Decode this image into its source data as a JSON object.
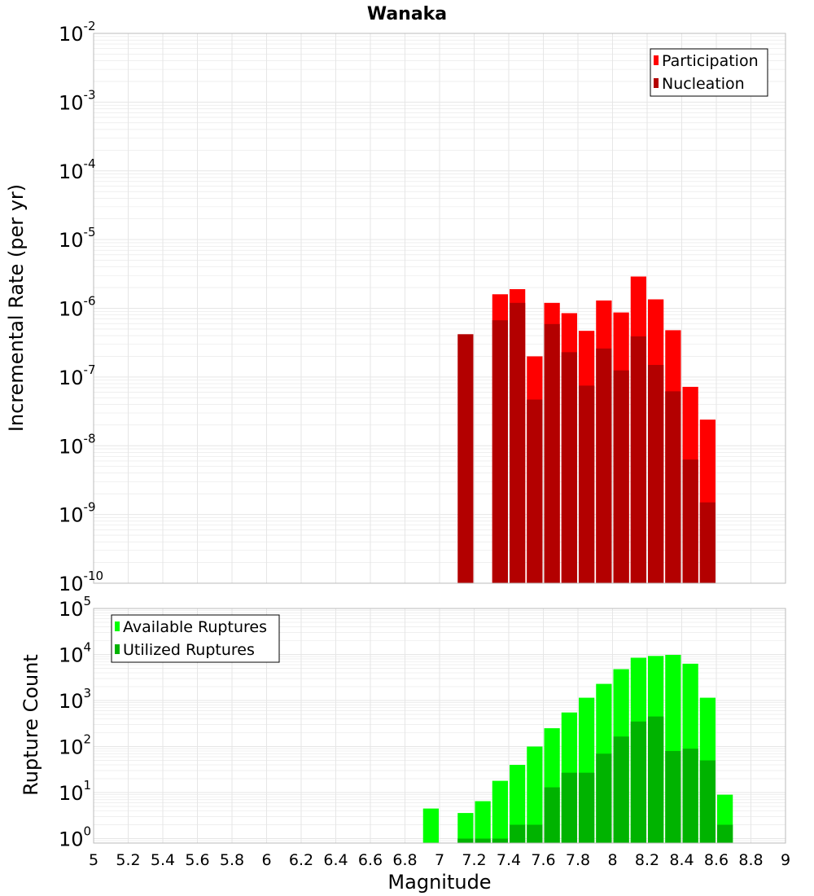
{
  "title": "Wanaka",
  "colors": {
    "participation": "#ff0000",
    "nucleation": "#b30000",
    "available": "#00ff00",
    "utilized": "#00b300",
    "grid": "#e6e6e6",
    "plot_border": "#bbbbbb"
  },
  "xlabel": "Magnitude",
  "x_ticks": [
    "5",
    "5.2",
    "5.4",
    "5.6",
    "5.8",
    "6",
    "6.2",
    "6.4",
    "6.6",
    "6.8",
    "7",
    "7.2",
    "7.4",
    "7.6",
    "7.8",
    "8",
    "8.2",
    "8.4",
    "8.6",
    "8.8",
    "9"
  ],
  "chart_data": [
    {
      "type": "bar",
      "scale": "log",
      "ylabel": "Incremental Rate (per yr)",
      "xlim": [
        5,
        9
      ],
      "ylim": [
        1e-10,
        0.01
      ],
      "y_ticks": [
        {
          "base": "10",
          "exp": "-2",
          "value": 0.01
        },
        {
          "base": "10",
          "exp": "-3",
          "value": 0.001
        },
        {
          "base": "10",
          "exp": "-4",
          "value": 0.0001
        },
        {
          "base": "10",
          "exp": "-5",
          "value": 1e-05
        },
        {
          "base": "10",
          "exp": "-6",
          "value": 1e-06
        },
        {
          "base": "10",
          "exp": "-7",
          "value": 1e-07
        },
        {
          "base": "10",
          "exp": "-8",
          "value": 1e-08
        },
        {
          "base": "10",
          "exp": "-9",
          "value": 1e-09
        },
        {
          "base": "10",
          "exp": "-10",
          "value": 1e-10
        }
      ],
      "legend_position": "top-right",
      "bar_width": 0.1,
      "series": [
        {
          "name": "Participation",
          "color_key": "participation",
          "x": [
            7.35,
            7.45,
            7.55,
            7.65,
            7.75,
            7.85,
            7.95,
            8.05,
            8.15,
            8.25,
            8.35,
            8.45,
            8.55
          ],
          "values": [
            1.6e-06,
            1.9e-06,
            2e-07,
            1.2e-06,
            8.5e-07,
            4.7e-07,
            1.3e-06,
            8.7e-07,
            2.9e-06,
            1.35e-06,
            4.8e-07,
            7.2e-08,
            2.4e-08
          ]
        },
        {
          "name": "Nucleation",
          "color_key": "nucleation",
          "x": [
            7.15,
            7.35,
            7.45,
            7.55,
            7.65,
            7.75,
            7.85,
            7.95,
            8.05,
            8.15,
            8.25,
            8.35,
            8.45,
            8.55
          ],
          "values": [
            4.2e-07,
            6.7e-07,
            1.2e-06,
            4.7e-08,
            5.9e-07,
            2.3e-07,
            7.5e-08,
            2.6e-07,
            1.25e-07,
            3.9e-07,
            1.5e-07,
            6.2e-08,
            6.3e-09,
            1.5e-09
          ]
        }
      ]
    },
    {
      "type": "bar",
      "scale": "log",
      "ylabel": "Rupture Count",
      "xlim": [
        5,
        9
      ],
      "ylim": [
        0.8,
        100000
      ],
      "y_ticks": [
        {
          "base": "10",
          "exp": "5",
          "value": 100000
        },
        {
          "base": "10",
          "exp": "4",
          "value": 10000
        },
        {
          "base": "10",
          "exp": "3",
          "value": 1000
        },
        {
          "base": "10",
          "exp": "2",
          "value": 100
        },
        {
          "base": "10",
          "exp": "1",
          "value": 10
        },
        {
          "base": "10",
          "exp": "0",
          "value": 1
        }
      ],
      "legend_position": "top-left",
      "bar_width": 0.1,
      "series": [
        {
          "name": "Available Ruptures",
          "color_key": "available",
          "x": [
            6.95,
            7.15,
            7.25,
            7.35,
            7.45,
            7.55,
            7.65,
            7.75,
            7.85,
            7.95,
            8.05,
            8.15,
            8.25,
            8.35,
            8.45,
            8.55,
            8.65
          ],
          "values": [
            4.5,
            3.6,
            6.5,
            18,
            40,
            100,
            250,
            550,
            1150,
            2300,
            4800,
            8500,
            9300,
            9800,
            6300,
            1150,
            9
          ]
        },
        {
          "name": "Utilized Ruptures",
          "color_key": "utilized",
          "x": [
            7.15,
            7.25,
            7.35,
            7.45,
            7.55,
            7.65,
            7.75,
            7.85,
            7.95,
            8.05,
            8.15,
            8.25,
            8.35,
            8.45,
            8.55,
            8.65
          ],
          "values": [
            1,
            1,
            1,
            2,
            2,
            13,
            27,
            27,
            70,
            165,
            350,
            450,
            80,
            90,
            50,
            2
          ]
        }
      ]
    }
  ]
}
